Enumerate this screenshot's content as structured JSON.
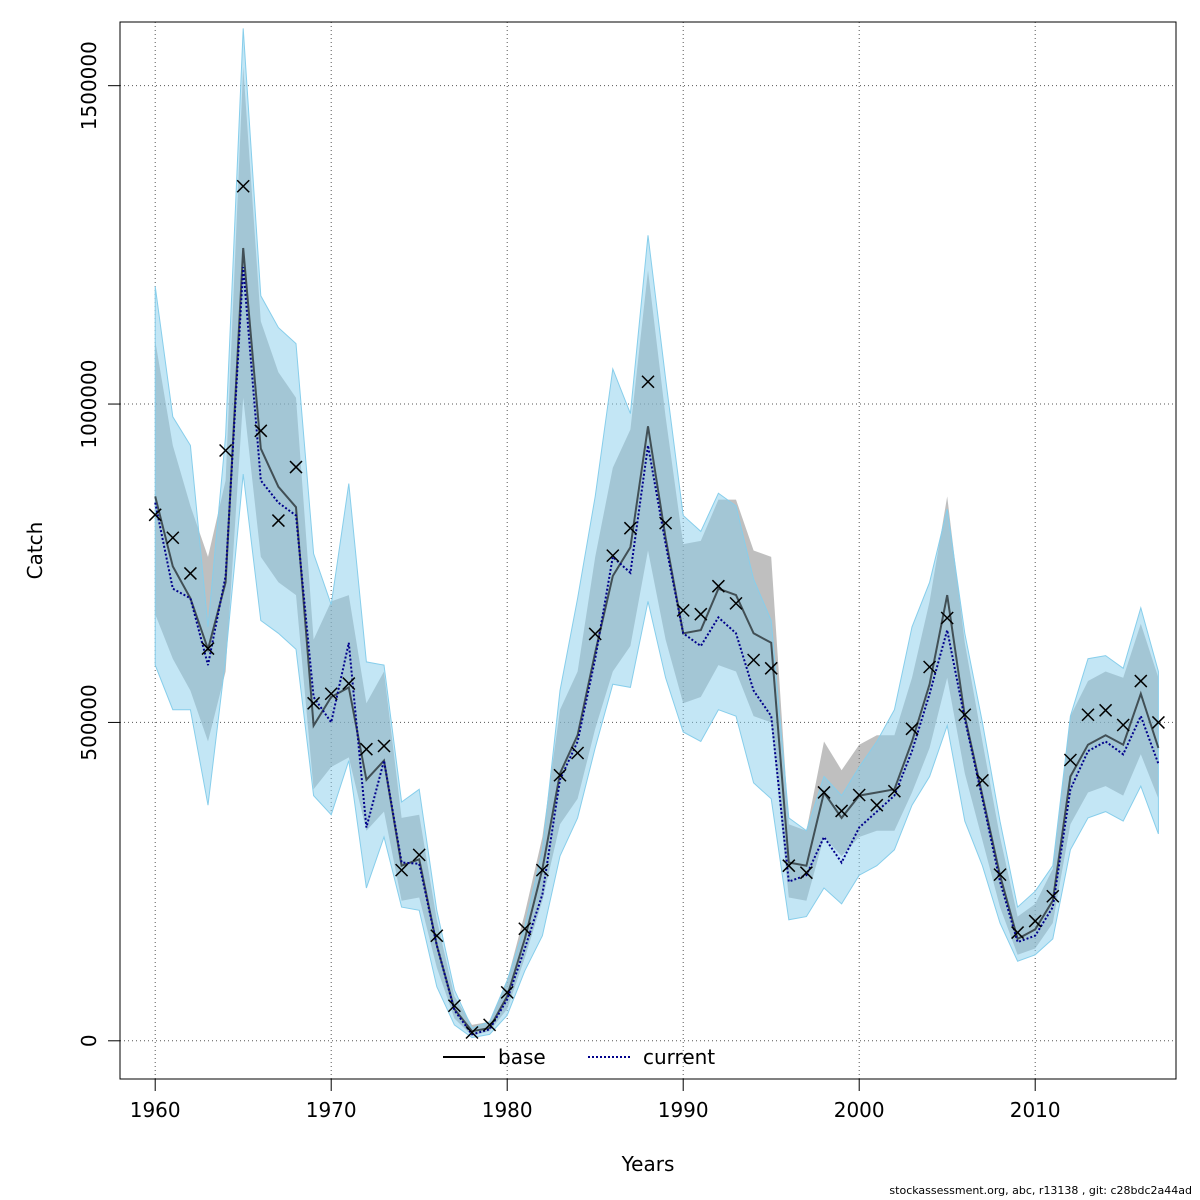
{
  "footer": "stockassessment.org, abc, r13138 , git: c28bdc2a44ad",
  "colors": {
    "base_band": "#808080",
    "current_band": "#87CEEB",
    "base_line": "#000000",
    "current_line": "#00008B",
    "obs_marker": "#000000",
    "grid": "#555555"
  },
  "chart_data": {
    "type": "line",
    "title": "",
    "xlabel": "Years",
    "ylabel": "Catch",
    "xlim": [
      1958,
      2018
    ],
    "ylim": [
      -60000,
      1600000
    ],
    "xticks": [
      1960,
      1970,
      1980,
      1990,
      2000,
      2010
    ],
    "yticks": [
      0,
      500000,
      1000000,
      1500000
    ],
    "ytick_labels": [
      "0",
      "500000",
      "1000000",
      "1500000"
    ],
    "grid": true,
    "legend": {
      "placement": "bottom-center",
      "entries": [
        {
          "label": "base",
          "style": "solid"
        },
        {
          "label": "current",
          "style": "dotted"
        }
      ]
    },
    "x": [
      1960,
      1961,
      1962,
      1963,
      1964,
      1965,
      1966,
      1967,
      1968,
      1969,
      1970,
      1971,
      1972,
      1973,
      1974,
      1975,
      1976,
      1977,
      1978,
      1979,
      1980,
      1981,
      1982,
      1983,
      1984,
      1985,
      1986,
      1987,
      1988,
      1989,
      1990,
      1991,
      1992,
      1993,
      1994,
      1995,
      1996,
      1997,
      1998,
      1999,
      2000,
      2001,
      2002,
      2003,
      2004,
      2005,
      2006,
      2007,
      2008,
      2009,
      2010,
      2011,
      2012,
      2013,
      2014,
      2015,
      2016,
      2017
    ],
    "observed": [
      826000,
      790000,
      734000,
      616000,
      927000,
      1342000,
      958000,
      817000,
      901000,
      530000,
      545000,
      561000,
      458000,
      463000,
      268000,
      292000,
      165000,
      55000,
      13000,
      25000,
      76000,
      176000,
      268000,
      417000,
      452000,
      639000,
      762000,
      805000,
      1035000,
      813000,
      676000,
      670000,
      714000,
      687000,
      598000,
      585000,
      275000,
      264000,
      390000,
      361000,
      386000,
      370000,
      392000,
      490000,
      587000,
      664000,
      512000,
      409000,
      261000,
      170000,
      188000,
      227000,
      441000,
      512000,
      519000,
      496000,
      565000,
      500000
    ],
    "series": [
      {
        "name": "base",
        "values": [
          855000,
          745000,
          695000,
          615000,
          720000,
          1245000,
          930000,
          870000,
          838000,
          495000,
          540000,
          555000,
          410000,
          440000,
          275000,
          285000,
          150000,
          50000,
          15000,
          20000,
          70000,
          160000,
          270000,
          420000,
          480000,
          610000,
          730000,
          775000,
          965000,
          790000,
          640000,
          645000,
          710000,
          700000,
          640000,
          625000,
          280000,
          275000,
          390000,
          350000,
          385000,
          390000,
          395000,
          470000,
          560000,
          700000,
          510000,
          385000,
          260000,
          160000,
          175000,
          220000,
          415000,
          465000,
          480000,
          465000,
          545000,
          460000
        ],
        "lower": [
          670000,
          600000,
          550000,
          470000,
          580000,
          1010000,
          760000,
          720000,
          700000,
          395000,
          430000,
          445000,
          330000,
          360000,
          220000,
          225000,
          115000,
          35000,
          8000,
          15000,
          50000,
          130000,
          220000,
          340000,
          380000,
          490000,
          580000,
          620000,
          770000,
          630000,
          530000,
          540000,
          590000,
          580000,
          510000,
          500000,
          225000,
          220000,
          320000,
          290000,
          320000,
          330000,
          330000,
          390000,
          460000,
          570000,
          420000,
          315000,
          210000,
          135000,
          145000,
          185000,
          340000,
          390000,
          400000,
          385000,
          450000,
          380000
        ],
        "upper": [
          1100000,
          935000,
          840000,
          760000,
          880000,
          1530000,
          1130000,
          1050000,
          1010000,
          630000,
          690000,
          700000,
          530000,
          580000,
          350000,
          355000,
          190000,
          70000,
          25000,
          30000,
          95000,
          200000,
          320000,
          520000,
          580000,
          760000,
          900000,
          960000,
          1210000,
          980000,
          780000,
          785000,
          850000,
          850000,
          770000,
          760000,
          340000,
          330000,
          470000,
          425000,
          465000,
          480000,
          480000,
          570000,
          690000,
          855000,
          625000,
          470000,
          320000,
          195000,
          215000,
          270000,
          510000,
          565000,
          580000,
          570000,
          655000,
          570000
        ]
      },
      {
        "name": "current",
        "values": [
          845000,
          710000,
          695000,
          590000,
          730000,
          1215000,
          880000,
          845000,
          825000,
          540000,
          500000,
          625000,
          335000,
          440000,
          280000,
          278000,
          150000,
          48000,
          10000,
          18000,
          65000,
          145000,
          230000,
          410000,
          470000,
          600000,
          760000,
          735000,
          935000,
          780000,
          640000,
          620000,
          665000,
          640000,
          550000,
          510000,
          250000,
          260000,
          320000,
          280000,
          335000,
          360000,
          385000,
          455000,
          545000,
          645000,
          505000,
          380000,
          250000,
          155000,
          165000,
          210000,
          395000,
          455000,
          470000,
          450000,
          510000,
          435000
        ],
        "lower": [
          590000,
          520000,
          520000,
          370000,
          600000,
          890000,
          660000,
          640000,
          615000,
          385000,
          355000,
          440000,
          240000,
          320000,
          210000,
          205000,
          85000,
          25000,
          5000,
          10000,
          40000,
          110000,
          165000,
          290000,
          350000,
          460000,
          560000,
          555000,
          690000,
          570000,
          485000,
          470000,
          520000,
          510000,
          405000,
          380000,
          190000,
          195000,
          240000,
          215000,
          260000,
          275000,
          300000,
          370000,
          415000,
          495000,
          345000,
          275000,
          185000,
          125000,
          135000,
          160000,
          300000,
          350000,
          360000,
          345000,
          400000,
          325000
        ],
        "upper": [
          1185000,
          980000,
          935000,
          650000,
          950000,
          1590000,
          1170000,
          1120000,
          1095000,
          765000,
          685000,
          875000,
          595000,
          590000,
          375000,
          395000,
          205000,
          80000,
          20000,
          30000,
          95000,
          180000,
          300000,
          550000,
          695000,
          855000,
          1055000,
          985000,
          1265000,
          1040000,
          825000,
          800000,
          860000,
          840000,
          725000,
          660000,
          350000,
          330000,
          415000,
          385000,
          430000,
          470000,
          520000,
          650000,
          720000,
          835000,
          640000,
          500000,
          345000,
          210000,
          235000,
          275000,
          510000,
          600000,
          605000,
          585000,
          680000,
          580000
        ]
      }
    ]
  }
}
